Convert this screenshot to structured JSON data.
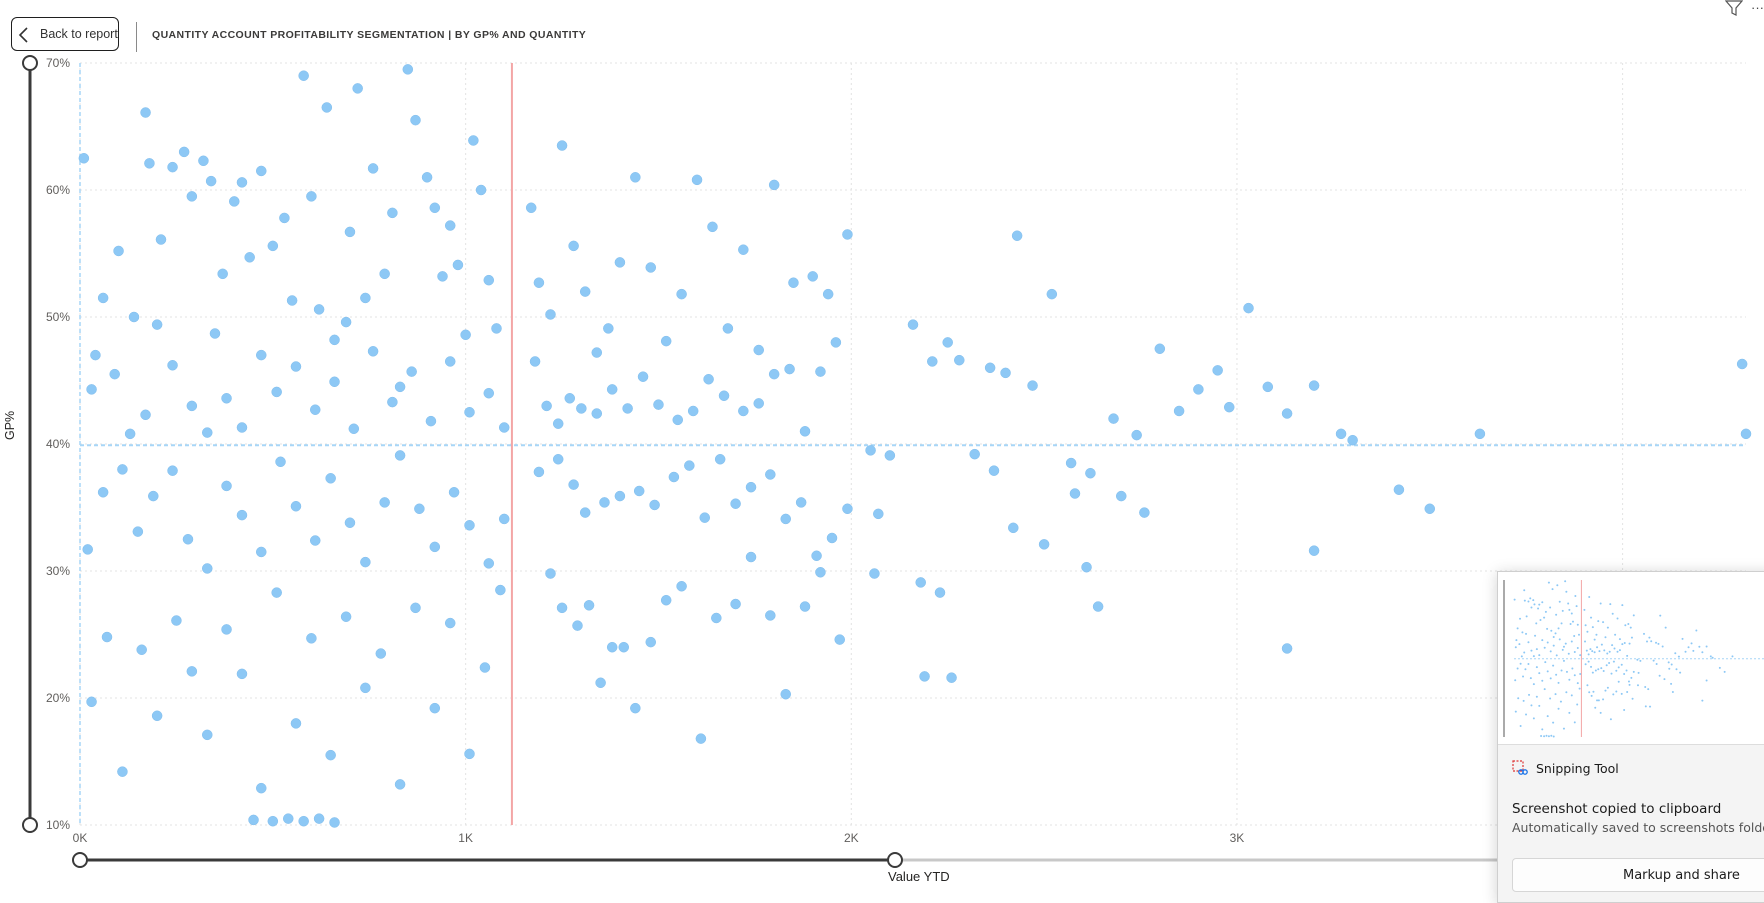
{
  "header": {
    "back_label": "Back to report",
    "title": "QUANTITY ACCOUNT PROFITABILITY SEGMENTATION | BY GP% AND QUANTITY",
    "icons": [
      "chevron-left-icon",
      "filter-icon",
      "more-options-icon"
    ]
  },
  "colors": {
    "points": "#8dc8f5",
    "avg_line": "#a7d6f7",
    "threshold_line": "#f3a6a6",
    "slider": "#3a3a3a"
  },
  "chart_data": {
    "type": "scatter",
    "title": "",
    "xlabel": "Value YTD",
    "ylabel": "GP%",
    "xlim": [
      0,
      4320
    ],
    "ylim": [
      10,
      70
    ],
    "x_ticks": [
      "0K",
      "1K",
      "2K",
      "3K"
    ],
    "y_ticks": [
      "10%",
      "20%",
      "30%",
      "40%",
      "50%",
      "60%",
      "70%"
    ],
    "reference_lines": {
      "x_threshold": 1120,
      "y_average": 39.9
    },
    "grid": true,
    "series": [
      {
        "points": [
          [
            10,
            62.5
          ],
          [
            40,
            47
          ],
          [
            60,
            51.5
          ],
          [
            100,
            55.2
          ],
          [
            140,
            50
          ],
          [
            170,
            66.1
          ],
          [
            180,
            62.1
          ],
          [
            200,
            49.4
          ],
          [
            210,
            56.1
          ],
          [
            240,
            61.8
          ],
          [
            270,
            63
          ],
          [
            290,
            59.5
          ],
          [
            320,
            62.3
          ],
          [
            340,
            60.7
          ],
          [
            350,
            48.7
          ],
          [
            370,
            53.4
          ],
          [
            400,
            59.1
          ],
          [
            420,
            60.6
          ],
          [
            440,
            54.7
          ],
          [
            470,
            61.5
          ],
          [
            500,
            55.6
          ],
          [
            530,
            57.8
          ],
          [
            550,
            51.3
          ],
          [
            580,
            69
          ],
          [
            600,
            59.5
          ],
          [
            620,
            50.6
          ],
          [
            640,
            66.5
          ],
          [
            660,
            48.2
          ],
          [
            690,
            49.6
          ],
          [
            700,
            56.7
          ],
          [
            720,
            68
          ],
          [
            740,
            51.5
          ],
          [
            760,
            61.7
          ],
          [
            790,
            53.4
          ],
          [
            810,
            58.2
          ],
          [
            830,
            44.5
          ],
          [
            850,
            69.5
          ],
          [
            870,
            65.5
          ],
          [
            900,
            61
          ],
          [
            920,
            58.6
          ],
          [
            940,
            53.2
          ],
          [
            960,
            57.2
          ],
          [
            980,
            54.1
          ],
          [
            1000,
            48.6
          ],
          [
            1020,
            63.9
          ],
          [
            1040,
            60
          ],
          [
            1060,
            52.9
          ],
          [
            1080,
            49.1
          ],
          [
            30,
            44.3
          ],
          [
            90,
            45.5
          ],
          [
            130,
            40.8
          ],
          [
            170,
            42.3
          ],
          [
            240,
            46.2
          ],
          [
            290,
            43
          ],
          [
            330,
            40.9
          ],
          [
            380,
            43.6
          ],
          [
            420,
            41.3
          ],
          [
            470,
            47
          ],
          [
            510,
            44.1
          ],
          [
            560,
            46.1
          ],
          [
            610,
            42.7
          ],
          [
            660,
            44.9
          ],
          [
            710,
            41.2
          ],
          [
            760,
            47.3
          ],
          [
            810,
            43.3
          ],
          [
            860,
            45.7
          ],
          [
            910,
            41.8
          ],
          [
            960,
            46.5
          ],
          [
            1010,
            42.5
          ],
          [
            1060,
            44
          ],
          [
            1100,
            41.3
          ],
          [
            20,
            31.7
          ],
          [
            60,
            36.2
          ],
          [
            110,
            38
          ],
          [
            150,
            33.1
          ],
          [
            190,
            35.9
          ],
          [
            240,
            37.9
          ],
          [
            280,
            32.5
          ],
          [
            330,
            30.2
          ],
          [
            380,
            36.7
          ],
          [
            420,
            34.4
          ],
          [
            470,
            31.5
          ],
          [
            520,
            38.6
          ],
          [
            560,
            35.1
          ],
          [
            610,
            32.4
          ],
          [
            650,
            37.3
          ],
          [
            700,
            33.8
          ],
          [
            740,
            30.7
          ],
          [
            790,
            35.4
          ],
          [
            830,
            39.1
          ],
          [
            880,
            34.9
          ],
          [
            920,
            31.9
          ],
          [
            970,
            36.2
          ],
          [
            1010,
            33.6
          ],
          [
            1060,
            30.6
          ],
          [
            1100,
            34.1
          ],
          [
            30,
            19.7
          ],
          [
            70,
            24.8
          ],
          [
            110,
            14.2
          ],
          [
            160,
            23.8
          ],
          [
            200,
            18.6
          ],
          [
            250,
            26.1
          ],
          [
            290,
            22.1
          ],
          [
            330,
            17.1
          ],
          [
            380,
            25.4
          ],
          [
            420,
            21.9
          ],
          [
            470,
            12.9
          ],
          [
            510,
            28.3
          ],
          [
            560,
            18
          ],
          [
            600,
            24.7
          ],
          [
            650,
            15.5
          ],
          [
            690,
            26.4
          ],
          [
            740,
            20.8
          ],
          [
            780,
            23.5
          ],
          [
            830,
            13.2
          ],
          [
            870,
            27.1
          ],
          [
            920,
            19.2
          ],
          [
            960,
            25.9
          ],
          [
            1010,
            15.6
          ],
          [
            1050,
            22.4
          ],
          [
            1090,
            28.5
          ],
          [
            450,
            10.4
          ],
          [
            500,
            10.3
          ],
          [
            540,
            10.5
          ],
          [
            580,
            10.3
          ],
          [
            620,
            10.5
          ],
          [
            660,
            10.2
          ],
          [
            1170,
            58.6
          ],
          [
            1190,
            52.7
          ],
          [
            1220,
            50.2
          ],
          [
            1250,
            63.5
          ],
          [
            1280,
            55.6
          ],
          [
            1310,
            52
          ],
          [
            1340,
            47.2
          ],
          [
            1370,
            49.1
          ],
          [
            1400,
            54.3
          ],
          [
            1440,
            61
          ],
          [
            1480,
            53.9
          ],
          [
            1520,
            48.1
          ],
          [
            1560,
            51.8
          ],
          [
            1600,
            60.8
          ],
          [
            1640,
            57.1
          ],
          [
            1680,
            49.1
          ],
          [
            1720,
            55.3
          ],
          [
            1760,
            47.4
          ],
          [
            1800,
            60.4
          ],
          [
            1850,
            52.7
          ],
          [
            1900,
            53.2
          ],
          [
            1940,
            51.8
          ],
          [
            1990,
            56.5
          ],
          [
            1180,
            46.5
          ],
          [
            1210,
            43
          ],
          [
            1240,
            41.6
          ],
          [
            1270,
            43.6
          ],
          [
            1300,
            42.8
          ],
          [
            1340,
            42.4
          ],
          [
            1380,
            44.3
          ],
          [
            1420,
            42.8
          ],
          [
            1460,
            45.3
          ],
          [
            1500,
            43.1
          ],
          [
            1550,
            41.9
          ],
          [
            1590,
            42.6
          ],
          [
            1630,
            45.1
          ],
          [
            1670,
            43.8
          ],
          [
            1720,
            42.6
          ],
          [
            1760,
            43.2
          ],
          [
            1800,
            45.5
          ],
          [
            1840,
            45.9
          ],
          [
            1880,
            41
          ],
          [
            1920,
            45.7
          ],
          [
            1960,
            48
          ],
          [
            1190,
            37.8
          ],
          [
            1240,
            38.8
          ],
          [
            1280,
            36.8
          ],
          [
            1310,
            34.6
          ],
          [
            1360,
            35.4
          ],
          [
            1400,
            35.9
          ],
          [
            1450,
            36.3
          ],
          [
            1490,
            35.2
          ],
          [
            1540,
            37.4
          ],
          [
            1580,
            38.3
          ],
          [
            1620,
            34.2
          ],
          [
            1660,
            38.8
          ],
          [
            1700,
            35.3
          ],
          [
            1740,
            36.6
          ],
          [
            1790,
            37.6
          ],
          [
            1830,
            34.1
          ],
          [
            1870,
            35.4
          ],
          [
            1910,
            31.2
          ],
          [
            1950,
            32.6
          ],
          [
            1990,
            34.9
          ],
          [
            1220,
            29.8
          ],
          [
            1250,
            27.1
          ],
          [
            1290,
            25.7
          ],
          [
            1320,
            27.3
          ],
          [
            1350,
            21.2
          ],
          [
            1380,
            24
          ],
          [
            1410,
            24
          ],
          [
            1440,
            19.2
          ],
          [
            1480,
            24.4
          ],
          [
            1520,
            27.7
          ],
          [
            1560,
            28.8
          ],
          [
            1610,
            16.8
          ],
          [
            1650,
            26.3
          ],
          [
            1700,
            27.4
          ],
          [
            1740,
            31.1
          ],
          [
            1790,
            26.5
          ],
          [
            1830,
            20.3
          ],
          [
            1880,
            27.2
          ],
          [
            1920,
            29.9
          ],
          [
            1970,
            24.6
          ],
          [
            2050,
            39.5
          ],
          [
            2100,
            39.1
          ],
          [
            2160,
            49.4
          ],
          [
            2210,
            46.5
          ],
          [
            2250,
            48
          ],
          [
            2280,
            46.6
          ],
          [
            2320,
            39.2
          ],
          [
            2360,
            46
          ],
          [
            2400,
            45.6
          ],
          [
            2430,
            56.4
          ],
          [
            2470,
            44.6
          ],
          [
            2520,
            51.8
          ],
          [
            2570,
            38.5
          ],
          [
            2620,
            37.7
          ],
          [
            2680,
            42
          ],
          [
            2740,
            40.7
          ],
          [
            2800,
            47.5
          ],
          [
            2850,
            42.6
          ],
          [
            2900,
            44.3
          ],
          [
            2950,
            45.8
          ],
          [
            2980,
            42.9
          ],
          [
            3030,
            50.7
          ],
          [
            3080,
            44.5
          ],
          [
            3130,
            42.4
          ],
          [
            3200,
            44.6
          ],
          [
            3270,
            40.8
          ],
          [
            3300,
            40.3
          ],
          [
            3420,
            36.4
          ],
          [
            3500,
            34.9
          ],
          [
            3630,
            40.8
          ],
          [
            4310,
            46.3
          ],
          [
            4320,
            40.8
          ],
          [
            2060,
            29.8
          ],
          [
            2070,
            34.5
          ],
          [
            2180,
            29.1
          ],
          [
            2190,
            21.7
          ],
          [
            2230,
            28.3
          ],
          [
            2260,
            21.6
          ],
          [
            2370,
            37.9
          ],
          [
            2420,
            33.4
          ],
          [
            2500,
            32.1
          ],
          [
            2580,
            36.1
          ],
          [
            2610,
            30.3
          ],
          [
            2640,
            27.2
          ],
          [
            2700,
            35.9
          ],
          [
            2760,
            34.6
          ],
          [
            3130,
            23.9
          ],
          [
            3200,
            31.6
          ]
        ]
      }
    ]
  },
  "sliders": {
    "y_range": [
      "10%",
      "70%"
    ],
    "x_range_end": "Value YTD"
  },
  "toast": {
    "app_name": "Snipping Tool",
    "title": "Screenshot copied to clipboard",
    "subtitle": "Automatically saved to screenshots folder",
    "button_label": "Markup and share"
  }
}
